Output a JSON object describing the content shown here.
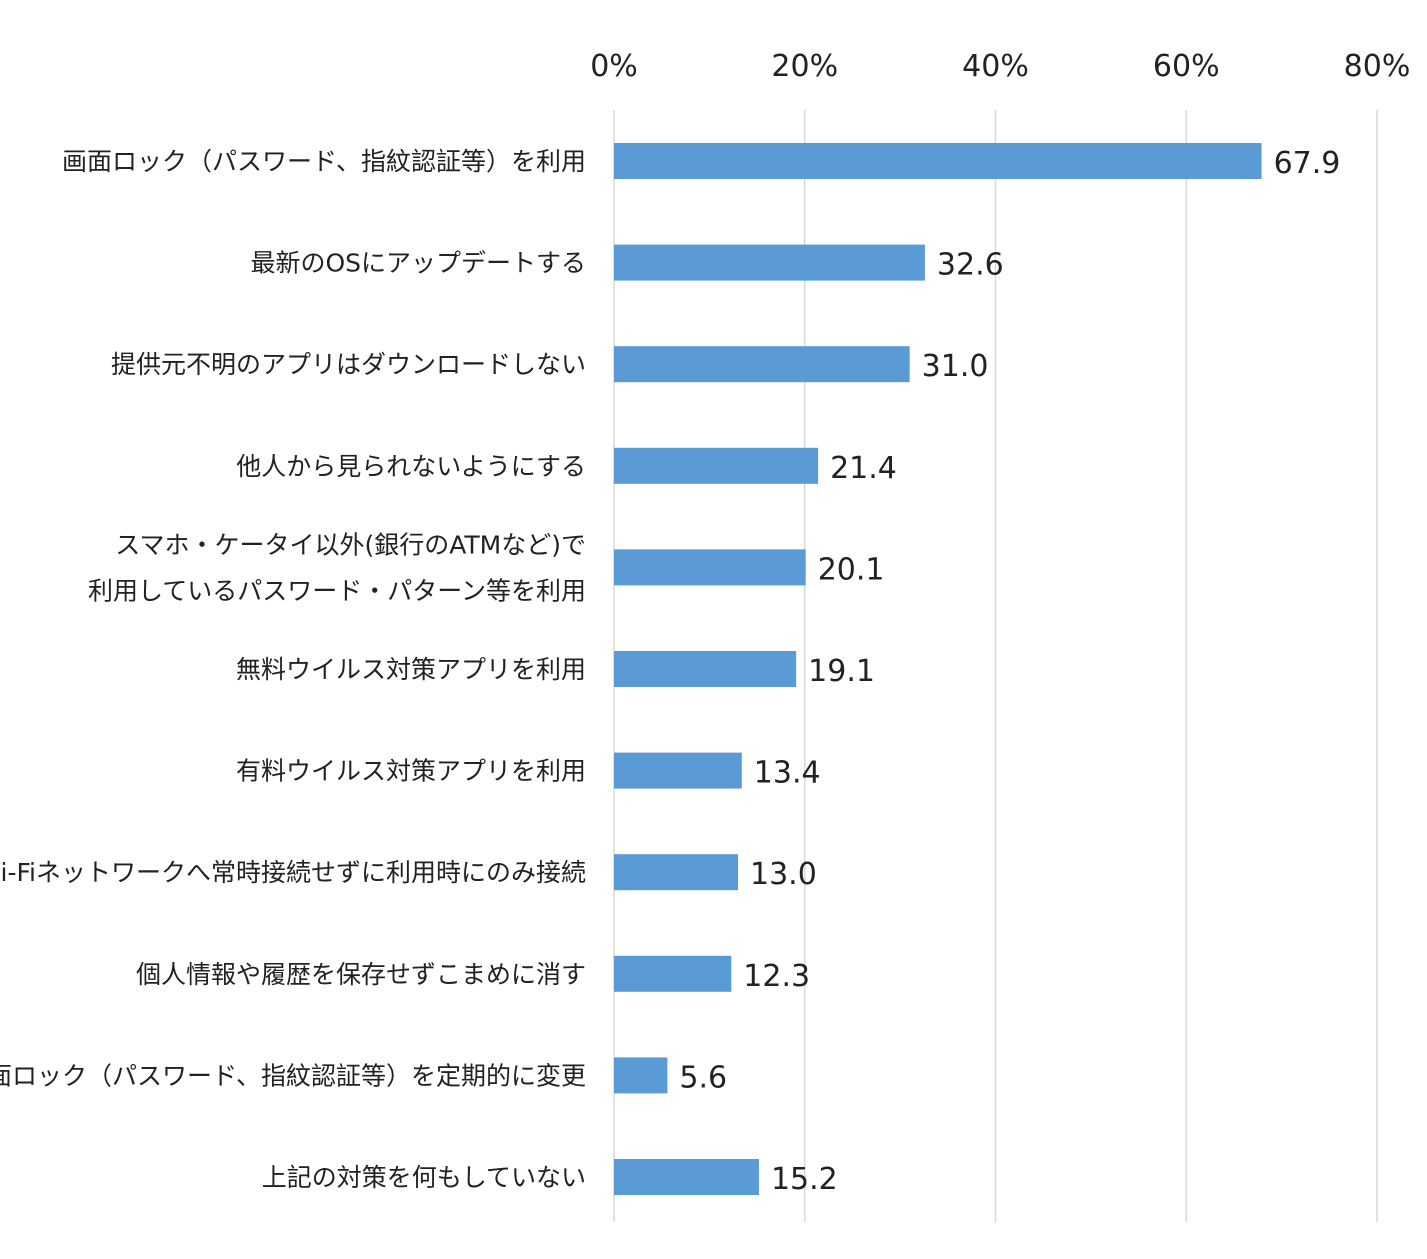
{
  "chart_data": {
    "type": "bar",
    "orientation": "horizontal",
    "categories": [
      [
        "画面ロック（パスワード、指紋認証等）を利用"
      ],
      [
        "最新のOSにアップデートする"
      ],
      [
        "提供元不明のアプリはダウンロードしない"
      ],
      [
        "他人から見られないようにする"
      ],
      [
        "スマホ・ケータイ以外(銀行のATMなど)で",
        "利用しているパスワード・パターン等を利用"
      ],
      [
        "無料ウイルス対策アプリを利用"
      ],
      [
        "有料ウイルス対策アプリを利用"
      ],
      [
        "Wi-Fiネットワークへ常時接続せずに利用時にのみ接続"
      ],
      [
        "個人情報や履歴を保存せずこまめに消す"
      ],
      [
        "画面ロック（パスワード、指紋認証等）を定期的に変更"
      ],
      [
        "上記の対策を何もしていない"
      ]
    ],
    "values": [
      67.9,
      32.6,
      31.0,
      21.4,
      20.1,
      19.1,
      13.4,
      13.0,
      12.3,
      5.6,
      15.2
    ],
    "value_labels": [
      "67.9",
      "32.6",
      "31.0",
      "21.4",
      "20.1",
      "19.1",
      "13.4",
      "13.0",
      "12.3",
      "5.6",
      "15.2"
    ],
    "xlim": [
      0,
      80
    ],
    "xticks": [
      0,
      20,
      40,
      60,
      80
    ],
    "xtick_labels": [
      "0%",
      "20%",
      "40%",
      "60%",
      "80%"
    ],
    "x_axis_position": "top",
    "grid": true,
    "legend": "none",
    "bar_color": "#5b9bd5"
  }
}
